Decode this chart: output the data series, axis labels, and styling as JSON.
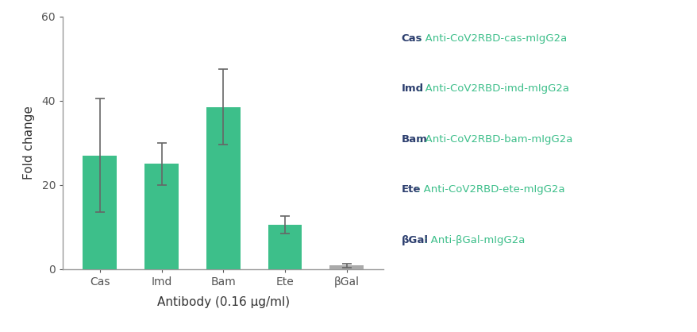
{
  "categories": [
    "Cas",
    "Imd",
    "Bam",
    "Ete",
    "βGal"
  ],
  "values": [
    27.0,
    25.0,
    38.5,
    10.5,
    0.8
  ],
  "errors": [
    13.5,
    5.0,
    9.0,
    2.0,
    0.5
  ],
  "bar_color": "#3dbf8a",
  "bgal_color": "#aaaaaa",
  "error_color": "#666666",
  "ylabel": "Fold change",
  "xlabel": "Antibody (0.16 µg/ml)",
  "ylim": [
    0,
    60
  ],
  "yticks": [
    0,
    20,
    40,
    60
  ],
  "background_color": "#ffffff",
  "legend_entries": [
    {
      "label": "Cas",
      "desc": ": Anti-CoV2RBD-cas-mIgG2a"
    },
    {
      "label": "Imd",
      "desc": ": Anti-CoV2RBD-imd-mIgG2a"
    },
    {
      "label": "Bam",
      "desc": ": Anti-CoV2RBD-bam-mIgG2a"
    },
    {
      "label": "Ete",
      "desc": ": Anti-CoV2RBD-ete-mIgG2a"
    },
    {
      "label": "βGal",
      "desc": ": Anti-βGal-mIgG2a"
    }
  ],
  "label_color": "#2c3e6e",
  "desc_color": "#3dbf8a",
  "bar_width": 0.55,
  "spine_color": "#999999",
  "tick_color": "#555555",
  "ylabel_fontsize": 11,
  "xlabel_fontsize": 11,
  "tick_fontsize": 10,
  "legend_fontsize": 9.5
}
